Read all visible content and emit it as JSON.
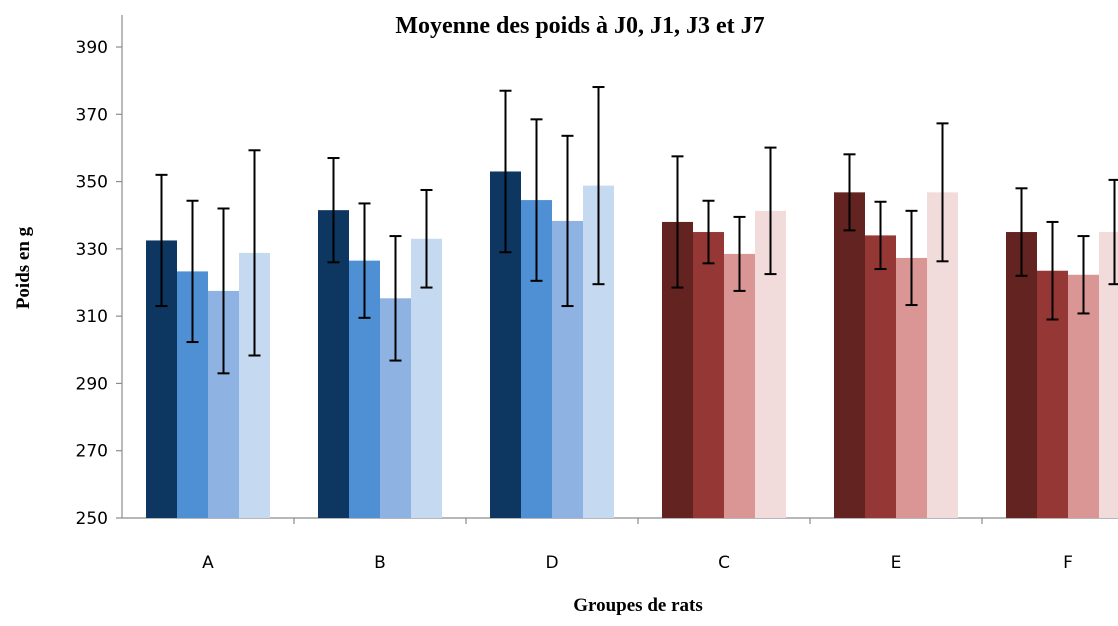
{
  "chart_data": {
    "type": "bar",
    "title": "Moyenne des poids à J0, J1, J3 et J7",
    "xlabel": "Groupes de rats",
    "ylabel": "Poids en g",
    "ylim": [
      250,
      390
    ],
    "yticks": [
      250,
      270,
      290,
      310,
      330,
      350,
      370,
      390
    ],
    "categories": [
      "A",
      "B",
      "D",
      "C",
      "E",
      "F"
    ],
    "legend": "none",
    "grid": false,
    "series_colors": {
      "blue": [
        "#0d3660",
        "#4f8fd3",
        "#8eb3e2",
        "#c5d9f1"
      ],
      "red": [
        "#632320",
        "#953734",
        "#d99694",
        "#f2dcdb"
      ]
    },
    "series": [
      {
        "values": [
          332.5,
          341.5,
          353.0,
          338.0,
          346.8,
          335.0
        ],
        "err": [
          19.5,
          15.5,
          24.0,
          19.5,
          11.3,
          13.0
        ]
      },
      {
        "values": [
          323.3,
          326.5,
          344.5,
          335.0,
          334.0,
          323.5
        ],
        "err": [
          21.0,
          17.0,
          24.0,
          9.3,
          10.0,
          14.5
        ]
      },
      {
        "values": [
          317.5,
          315.3,
          338.3,
          328.5,
          327.3,
          322.3
        ],
        "err": [
          24.5,
          18.5,
          25.3,
          11.0,
          14.0,
          11.5
        ]
      },
      {
        "values": [
          328.8,
          333.0,
          348.8,
          341.3,
          346.8,
          335.0
        ],
        "err": [
          30.5,
          14.5,
          29.3,
          18.8,
          20.5,
          15.5
        ]
      }
    ]
  }
}
